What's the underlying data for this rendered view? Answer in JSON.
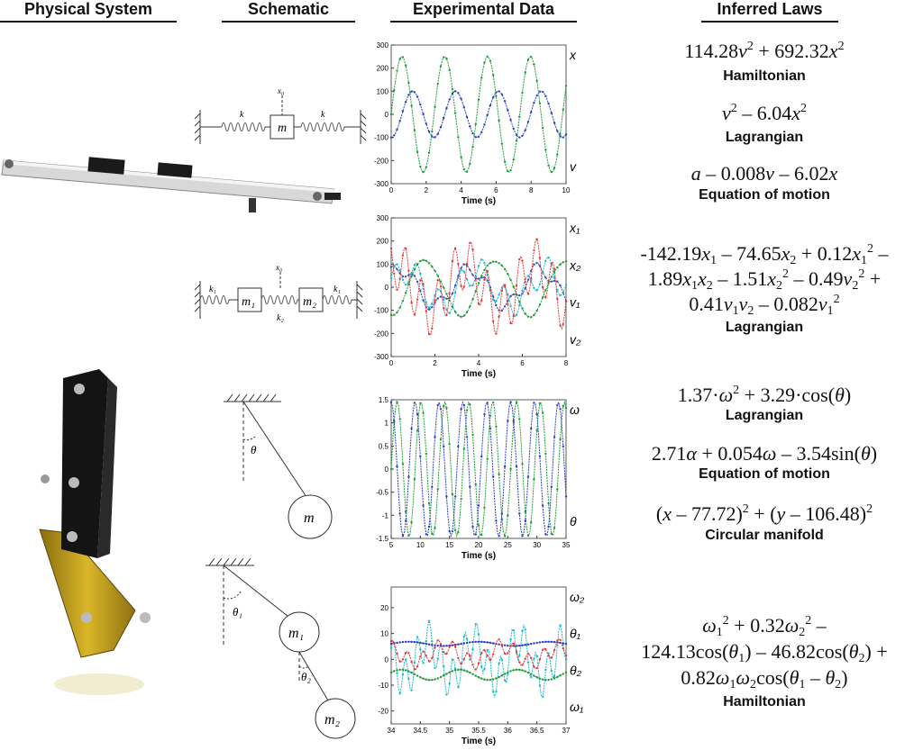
{
  "headers": {
    "physical": "Physical System",
    "schematic": "Schematic",
    "experimental": "Experimental Data",
    "inferred": "Inferred Laws"
  },
  "schematics": {
    "s1": {
      "k_left": "k",
      "k_right": "k",
      "mass": "m",
      "x0": "x₀"
    },
    "s2": {
      "k1_left": "k₁",
      "k1_right": "k₁",
      "k2": "k₂",
      "m1": "m₁",
      "m2": "m₂",
      "x0": "x₀"
    },
    "s3": {
      "theta": "θ",
      "mass": "m"
    },
    "s4": {
      "theta1": "θ₁",
      "theta2": "θ₂",
      "m1": "m₁",
      "m2": "m₂"
    }
  },
  "chart_data": [
    {
      "type": "line",
      "xlabel": "Time (s)",
      "xlim": [
        0,
        10
      ],
      "ylim": [
        -300,
        300
      ],
      "xticks": [
        0,
        2,
        4,
        6,
        8,
        10
      ],
      "yticks": [
        300,
        200,
        100,
        0,
        -100,
        -200,
        -300
      ],
      "series": [
        {
          "name": "x",
          "color": "#2a3fbf",
          "formula": "sin",
          "amplitude": 100,
          "period": 2.45,
          "phase": -1.57
        },
        {
          "name": "v",
          "color": "#1f9a3a",
          "formula": "sin",
          "amplitude": 250,
          "period": 2.45,
          "phase": 0.0
        }
      ],
      "series_labels": [
        "x",
        "v"
      ]
    },
    {
      "type": "line",
      "xlabel": "Time (s)",
      "xlim": [
        0,
        8
      ],
      "ylim": [
        -300,
        300
      ],
      "xticks": [
        0,
        2,
        4,
        6,
        8
      ],
      "yticks": [
        300,
        200,
        100,
        0,
        -100,
        -200,
        -300
      ],
      "series": [
        {
          "name": "x1",
          "color": "#3b4cc0",
          "formula": "mix",
          "amplitude": 80,
          "period": 3.2,
          "phase": 0.8,
          "amp2": 30,
          "period2": 1.1
        },
        {
          "name": "x2",
          "color": "#21b7c9",
          "formula": "mix",
          "amplitude": 70,
          "period": 3.2,
          "phase": 0.2,
          "amp2": 60,
          "period2": 1.0
        },
        {
          "name": "v1",
          "color": "#e23b3b",
          "formula": "mix",
          "amplitude": 100,
          "period": 3.2,
          "phase": 1.2,
          "amp2": 110,
          "period2": 0.75
        },
        {
          "name": "v2",
          "color": "#1f9a3a",
          "formula": "mix",
          "amplitude": 120,
          "period": 3.2,
          "phase": -1.5,
          "amp2": 10,
          "period2": 1.5
        }
      ],
      "series_labels": [
        "x₁",
        "x₂",
        "v₁",
        "v₂"
      ]
    },
    {
      "type": "line",
      "xlabel": "Time (s)",
      "xlim": [
        5,
        35
      ],
      "ylim": [
        -1.5,
        1.5
      ],
      "xticks": [
        5,
        10,
        15,
        20,
        25,
        30,
        35
      ],
      "yticks": [
        1.5,
        1,
        0.5,
        0,
        -0.5,
        -1,
        -1.5
      ],
      "series": [
        {
          "name": "ω",
          "color": "#1f9a3a",
          "formula": "sin",
          "amplitude": 1.45,
          "period": 4.1,
          "phase": 0.0
        },
        {
          "name": "θ",
          "color": "#2a3fbf",
          "formula": "sin",
          "amplitude": 1.45,
          "period": 4.1,
          "phase": 1.57
        }
      ],
      "series_labels": [
        "ω",
        "θ"
      ]
    },
    {
      "type": "line",
      "xlabel": "Time (s)",
      "xlim": [
        34,
        37
      ],
      "ylim": [
        -25,
        28
      ],
      "xticks": [
        34,
        34.5,
        35,
        35.5,
        36,
        36.5,
        37
      ],
      "yticks": [
        20,
        10,
        0,
        -10,
        -20
      ],
      "series": [
        {
          "name": "ω2",
          "color": "#21b7c9",
          "formula": "chaos",
          "amplitude": 15,
          "period": 0.55,
          "phase": 0.3
        },
        {
          "name": "θ1",
          "color": "#2a3fbf",
          "formula": "flat",
          "amplitude": 0.8,
          "period": 1.2,
          "phase": 0.0,
          "offset": 6
        },
        {
          "name": "θ2",
          "color": "#e23b3b",
          "formula": "chaos",
          "amplitude": 6,
          "period": 0.7,
          "phase": 1.0,
          "offset": 2
        },
        {
          "name": "ω1",
          "color": "#1f9a3a",
          "formula": "flat",
          "amplitude": 2,
          "period": 1.0,
          "phase": 0.5,
          "offset": -6
        }
      ],
      "series_labels": [
        "ω₂",
        "θ₁",
        "θ₂",
        "ω₁"
      ]
    }
  ],
  "laws": [
    {
      "html": "114.28<i>v</i><sup>2</sup> + 692.32<i>x</i><sup>2</sup>",
      "label": "Hamiltonian"
    },
    {
      "html": "<i>v</i><sup>2</sup> – 6.04<i>x</i><sup>2</sup>",
      "label": "Lagrangian"
    },
    {
      "html": "<i>a</i> – 0.008<i>v</i> – 6.02<i>x</i>",
      "label": "Equation of motion"
    },
    {
      "html": "-142.19<i>x</i><sub>1</sub> – 74.65<i>x</i><sub>2</sub> + 0.12<i>x</i><sub>1</sub><sup>2</sup> –<br>1.89<i>x</i><sub>1</sub><i>x</i><sub>2</sub> – 1.51<i>x</i><sub>2</sub><sup>2</sup> – 0.49<i>v</i><sub>2</sub><sup>2</sup> +<br>0.41<i>v</i><sub>1</sub><i>v</i><sub>2</sub> – 0.082<i>v</i><sub>1</sub><sup>2</sup>",
      "label": "Lagrangian"
    },
    {
      "html": "1.37·<i>ω</i><sup>2</sup> + 3.29·cos(<i>θ</i>)",
      "label": "Lagrangian"
    },
    {
      "html": "2.71<i>α</i> + 0.054<i>ω</i> – 3.54sin(<i>θ</i>)",
      "label": "Equation of motion"
    },
    {
      "html": "(<i>x</i> – 77.72)<sup>2</sup> + (<i>y</i> – 106.48)<sup>2</sup>",
      "label": "Circular manifold"
    },
    {
      "html": "<i>ω</i><sub>1</sub><sup>2</sup> + 0.32<i>ω</i><sub>2</sub><sup>2</sup> –<br>124.13cos(<i>θ</i><sub>1</sub>) – 46.82cos(<i>θ</i><sub>2</sub>) +<br>0.82<i>ω</i><sub>1</sub><i>ω</i><sub>2</sub>cos(<i>θ</i><sub>1</sub> – <i>θ</i><sub>2</sub>)",
      "label": "Hamiltonian"
    }
  ]
}
